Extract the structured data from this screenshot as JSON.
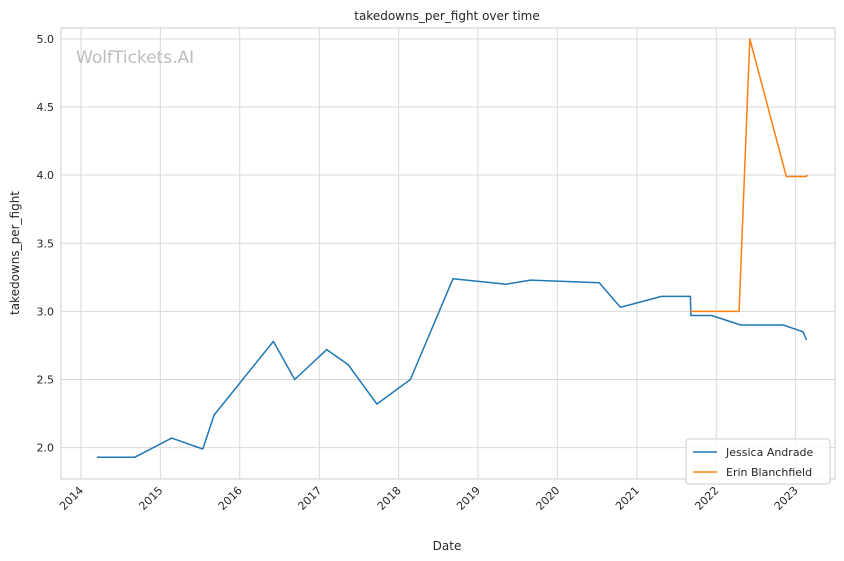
{
  "watermark": "WolfTickets.AI",
  "chart_data": {
    "type": "line",
    "title": "takedowns_per_fight over time",
    "xlabel": "Date",
    "ylabel": "takedowns_per_fight",
    "x_ticks": [
      "2014",
      "2015",
      "2016",
      "2017",
      "2018",
      "2019",
      "2020",
      "2021",
      "2022",
      "2023"
    ],
    "y_ticks": [
      "2.0",
      "2.5",
      "3.0",
      "3.5",
      "4.0",
      "4.5",
      "5.0"
    ],
    "xlim": [
      "2013-10-01",
      "2023-07-01"
    ],
    "ylim": [
      1.77,
      5.08
    ],
    "grid": true,
    "legend_position": "bottom-right",
    "colors": {
      "Jessica Andrade": "#1f77b4",
      "Erin Blanchfield": "#ff7f0e"
    },
    "series": [
      {
        "name": "Jessica Andrade",
        "color": "#1f77b4",
        "points": [
          [
            "2014-03-15",
            1.93
          ],
          [
            "2014-09-06",
            1.93
          ],
          [
            "2015-02-22",
            2.07
          ],
          [
            "2015-07-15",
            1.99
          ],
          [
            "2015-09-05",
            2.24
          ],
          [
            "2016-06-04",
            2.78
          ],
          [
            "2016-09-10",
            2.5
          ],
          [
            "2017-02-04",
            2.72
          ],
          [
            "2017-05-13",
            2.61
          ],
          [
            "2017-09-23",
            2.32
          ],
          [
            "2018-02-24",
            2.5
          ],
          [
            "2018-09-08",
            3.24
          ],
          [
            "2019-05-11",
            3.2
          ],
          [
            "2019-08-31",
            3.23
          ],
          [
            "2020-07-12",
            3.21
          ],
          [
            "2020-10-17",
            3.03
          ],
          [
            "2021-04-24",
            3.11
          ],
          [
            "2021-09-04",
            3.11
          ],
          [
            "2021-09-06",
            2.97
          ],
          [
            "2021-12-11",
            2.97
          ],
          [
            "2022-04-23",
            2.9
          ],
          [
            "2022-11-05",
            2.9
          ],
          [
            "2023-02-04",
            2.85
          ],
          [
            "2023-02-20",
            2.79
          ]
        ]
      },
      {
        "name": "Erin Blanchfield",
        "color": "#ff7f0e",
        "points": [
          [
            "2021-09-05",
            3.0
          ],
          [
            "2022-04-16",
            3.0
          ],
          [
            "2022-06-04",
            5.0
          ],
          [
            "2022-11-19",
            3.99
          ],
          [
            "2023-02-18",
            3.99
          ],
          [
            "2023-02-26",
            4.0
          ]
        ]
      }
    ]
  }
}
